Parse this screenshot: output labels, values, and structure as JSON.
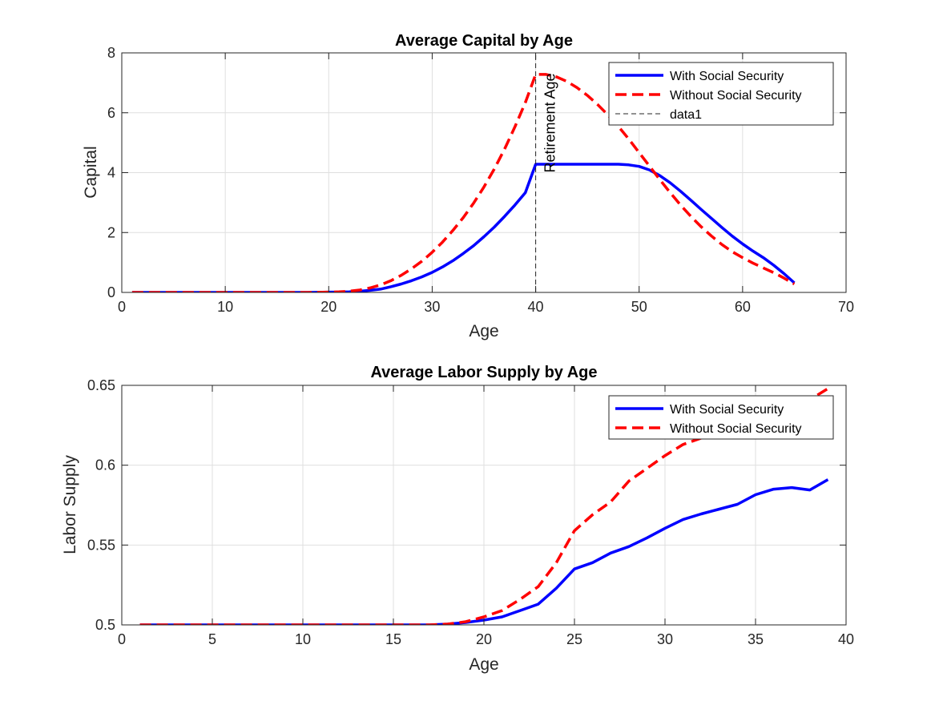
{
  "chart_data": [
    {
      "type": "line",
      "title": "Average Capital by Age",
      "xlabel": "Age",
      "ylabel": "Capital",
      "xlim": [
        0,
        70
      ],
      "ylim": [
        0,
        8
      ],
      "xticks": [
        "0",
        "10",
        "20",
        "30",
        "40",
        "50",
        "60",
        "70"
      ],
      "yticks": [
        "0",
        "2",
        "4",
        "6",
        "8"
      ],
      "grid": true,
      "legend_position": "top-right",
      "annotation": {
        "text": "Retirement Age",
        "x": 40,
        "y": 4.0
      },
      "series": [
        {
          "name": "With Social Security",
          "color": "#0000ff",
          "style": "solid",
          "x": [
            1,
            5,
            10,
            15,
            18,
            20,
            21,
            22,
            23,
            24,
            25,
            26,
            27,
            28,
            29,
            30,
            31,
            32,
            33,
            34,
            35,
            36,
            37,
            38,
            39,
            40,
            41,
            42,
            43,
            44,
            45,
            46,
            47,
            48,
            49,
            50,
            51,
            52,
            53,
            54,
            55,
            56,
            57,
            58,
            59,
            60,
            61,
            62,
            63,
            64,
            65
          ],
          "y": [
            0,
            0,
            0,
            0,
            0,
            0.01,
            0.01,
            0.02,
            0.04,
            0.07,
            0.11,
            0.19,
            0.28,
            0.39,
            0.52,
            0.67,
            0.85,
            1.06,
            1.3,
            1.56,
            1.86,
            2.18,
            2.54,
            2.92,
            3.33,
            4.28,
            4.28,
            4.28,
            4.28,
            4.28,
            4.28,
            4.28,
            4.28,
            4.28,
            4.26,
            4.21,
            4.09,
            3.9,
            3.66,
            3.38,
            3.08,
            2.77,
            2.47,
            2.17,
            1.88,
            1.62,
            1.38,
            1.16,
            0.91,
            0.63,
            0.32
          ]
        },
        {
          "name": "Without Social Security",
          "color": "#ff0000",
          "style": "dashed",
          "x": [
            1,
            5,
            10,
            15,
            18,
            20,
            21,
            22,
            23,
            24,
            25,
            26,
            27,
            28,
            29,
            30,
            31,
            32,
            33,
            34,
            35,
            36,
            37,
            38,
            39,
            40,
            41,
            42,
            43,
            44,
            45,
            46,
            47,
            48,
            49,
            50,
            51,
            52,
            53,
            54,
            55,
            56,
            57,
            58,
            59,
            60,
            61,
            62,
            63,
            64,
            65
          ],
          "y": [
            0,
            0,
            0,
            0,
            0,
            0.01,
            0.02,
            0.04,
            0.08,
            0.15,
            0.25,
            0.39,
            0.57,
            0.79,
            1.04,
            1.34,
            1.68,
            2.07,
            2.5,
            2.98,
            3.52,
            4.12,
            4.79,
            5.53,
            6.34,
            7.28,
            7.28,
            7.2,
            7.05,
            6.84,
            6.58,
            6.27,
            5.92,
            5.54,
            5.12,
            4.67,
            4.22,
            3.77,
            3.33,
            2.92,
            2.54,
            2.19,
            1.88,
            1.6,
            1.36,
            1.16,
            0.98,
            0.82,
            0.66,
            0.48,
            0.28
          ]
        },
        {
          "name": "data1",
          "color": "#262626",
          "style": "dashed-thin",
          "x": [
            40,
            40
          ],
          "y": [
            0,
            8
          ]
        }
      ]
    },
    {
      "type": "line",
      "title": "Average Labor Supply by Age",
      "xlabel": "Age",
      "ylabel": "Labor Supply",
      "xlim": [
        0,
        40
      ],
      "ylim": [
        0.5,
        0.65
      ],
      "xticks": [
        "0",
        "5",
        "10",
        "15",
        "20",
        "25",
        "30",
        "35",
        "40"
      ],
      "yticks": [
        "0.5",
        "0.55",
        "0.6",
        "0.65"
      ],
      "grid": true,
      "legend_position": "top-right",
      "series": [
        {
          "name": "With Social Security",
          "color": "#0000ff",
          "style": "solid",
          "x": [
            1,
            5,
            10,
            15,
            17,
            18,
            19,
            20,
            21,
            22,
            23,
            24,
            25,
            26,
            27,
            28,
            29,
            30,
            31,
            32,
            33,
            34,
            35,
            36,
            37,
            38,
            39
          ],
          "y": [
            0.5,
            0.5,
            0.5,
            0.5,
            0.5,
            0.5005,
            0.5015,
            0.503,
            0.505,
            0.509,
            0.513,
            0.523,
            0.535,
            0.539,
            0.545,
            0.549,
            0.5545,
            0.5605,
            0.566,
            0.5695,
            0.5725,
            0.5755,
            0.5815,
            0.585,
            0.586,
            0.5845,
            0.591
          ]
        },
        {
          "name": "Without Social Security",
          "color": "#ff0000",
          "style": "dashed",
          "x": [
            1,
            5,
            10,
            15,
            17,
            18,
            19,
            20,
            21,
            22,
            23,
            24,
            25,
            26,
            27,
            28,
            29,
            30,
            31,
            32,
            33,
            34,
            35,
            36,
            37,
            38,
            39
          ],
          "y": [
            0.5,
            0.5,
            0.5,
            0.5,
            0.5,
            0.5005,
            0.502,
            0.505,
            0.509,
            0.516,
            0.524,
            0.539,
            0.559,
            0.569,
            0.577,
            0.59,
            0.598,
            0.606,
            0.613,
            0.617,
            0.62,
            0.624,
            0.628,
            0.632,
            0.636,
            0.641,
            0.648
          ]
        }
      ]
    }
  ]
}
